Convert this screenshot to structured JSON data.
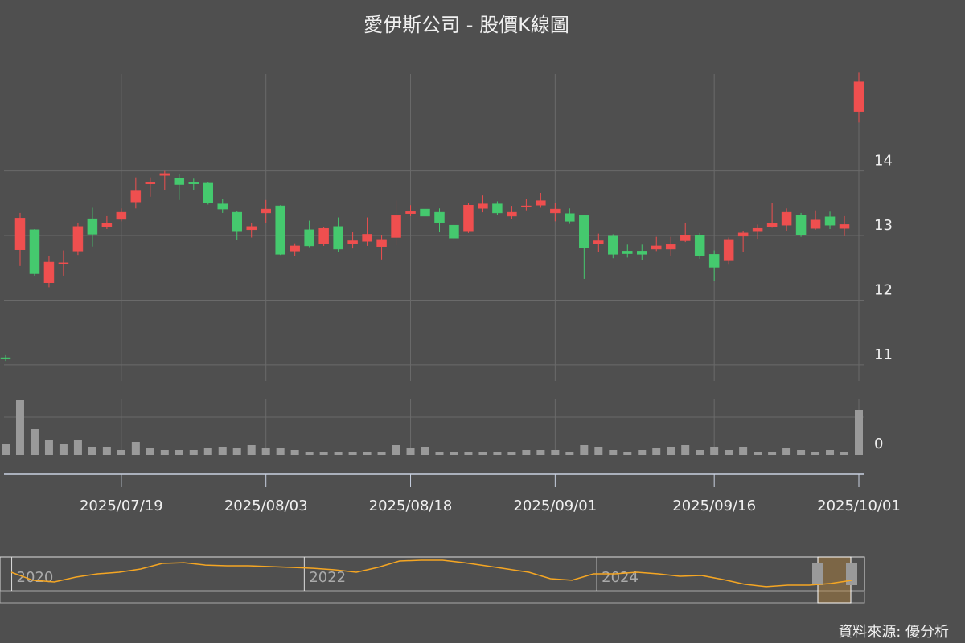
{
  "chart_data": {
    "type": "candlestick",
    "title": "愛伊斯公司 - 股價K線圖",
    "source": "資料來源: 優分析",
    "up_color": "#ef4f4f",
    "down_color": "#45c96e",
    "grid": true,
    "x": [
      "2025/07/09",
      "2025/07/10",
      "2025/07/11",
      "2025/07/14",
      "2025/07/15",
      "2025/07/16",
      "2025/07/17",
      "2025/07/18",
      "2025/07/21",
      "2025/07/22",
      "2025/07/23",
      "2025/07/24",
      "2025/07/25",
      "2025/07/28",
      "2025/07/29",
      "2025/07/30",
      "2025/07/31",
      "2025/08/01",
      "2025/08/04",
      "2025/08/05",
      "2025/08/06",
      "2025/08/07",
      "2025/08/08",
      "2025/08/11",
      "2025/08/12",
      "2025/08/13",
      "2025/08/14",
      "2025/08/15",
      "2025/08/18",
      "2025/08/19",
      "2025/08/20",
      "2025/08/21",
      "2025/08/22",
      "2025/08/25",
      "2025/08/26",
      "2025/08/27",
      "2025/08/28",
      "2025/08/29",
      "2025/09/01",
      "2025/09/02",
      "2025/09/03",
      "2025/09/04",
      "2025/09/05",
      "2025/09/08",
      "2025/09/09",
      "2025/09/10",
      "2025/09/11",
      "2025/09/12",
      "2025/09/15",
      "2025/09/16",
      "2025/09/17",
      "2025/09/18",
      "2025/09/19",
      "2025/09/22",
      "2025/09/23",
      "2025/09/24",
      "2025/09/25",
      "2025/09/26",
      "2025/09/30",
      "2025/10/01"
    ],
    "open": [
      11.11,
      12.78,
      13.09,
      12.27,
      12.57,
      12.76,
      13.26,
      13.14,
      13.25,
      13.52,
      13.8,
      13.93,
      13.89,
      13.82,
      13.81,
      13.49,
      13.36,
      13.09,
      13.35,
      13.46,
      12.76,
      13.09,
      12.87,
      13.14,
      12.87,
      12.91,
      12.83,
      12.97,
      13.34,
      13.41,
      13.36,
      13.16,
      13.06,
      13.42,
      13.49,
      13.3,
      13.44,
      13.47,
      13.35,
      13.34,
      13.31,
      12.87,
      12.99,
      12.76,
      12.76,
      12.79,
      12.79,
      12.92,
      13.01,
      12.71,
      12.61,
      12.99,
      13.06,
      13.14,
      13.16,
      13.32,
      13.11,
      13.29,
      13.11,
      14.92
    ],
    "high": [
      11.15,
      13.35,
      13.1,
      12.68,
      12.77,
      13.2,
      13.43,
      13.3,
      13.42,
      13.9,
      13.9,
      14.0,
      13.95,
      13.88,
      13.83,
      13.57,
      13.38,
      13.2,
      13.55,
      13.47,
      12.88,
      13.23,
      13.13,
      13.28,
      13.05,
      13.28,
      13.0,
      13.54,
      13.47,
      13.55,
      13.42,
      13.18,
      13.5,
      13.62,
      13.53,
      13.46,
      13.56,
      13.66,
      13.5,
      13.42,
      13.32,
      13.03,
      13.02,
      12.86,
      12.86,
      12.98,
      12.98,
      13.2,
      13.04,
      12.77,
      12.97,
      13.07,
      13.17,
      13.51,
      13.42,
      13.35,
      13.39,
      13.37,
      13.3,
      15.52
    ],
    "low": [
      11.06,
      12.53,
      12.38,
      12.2,
      12.38,
      12.7,
      12.83,
      13.1,
      13.22,
      13.42,
      13.6,
      13.7,
      13.55,
      13.7,
      13.48,
      13.35,
      12.93,
      12.97,
      13.2,
      12.7,
      12.68,
      12.82,
      12.84,
      12.75,
      12.8,
      12.84,
      12.63,
      12.85,
      13.3,
      13.25,
      13.05,
      12.93,
      13.04,
      13.36,
      13.32,
      13.26,
      13.39,
      13.43,
      13.22,
      13.18,
      12.33,
      12.75,
      12.65,
      12.66,
      12.62,
      12.76,
      12.69,
      12.9,
      12.64,
      12.3,
      12.55,
      12.75,
      12.95,
      13.12,
      13.07,
      12.98,
      13.09,
      13.1,
      12.99,
      14.75
    ],
    "close": [
      11.09,
      13.27,
      12.41,
      12.59,
      12.58,
      13.14,
      13.02,
      13.19,
      13.36,
      13.69,
      13.82,
      13.96,
      13.79,
      13.8,
      13.51,
      13.41,
      13.06,
      13.14,
      13.41,
      12.71,
      12.84,
      12.84,
      13.11,
      12.79,
      12.92,
      13.02,
      12.94,
      13.31,
      13.37,
      13.3,
      13.2,
      12.96,
      13.47,
      13.49,
      13.35,
      13.36,
      13.46,
      13.54,
      13.41,
      13.22,
      12.81,
      12.92,
      12.71,
      12.72,
      12.71,
      12.84,
      12.86,
      13.01,
      12.69,
      12.51,
      12.94,
      13.04,
      13.11,
      13.19,
      13.36,
      13.01,
      13.24,
      13.16,
      13.17,
      15.38
    ],
    "ylim": [
      10.75,
      15.5
    ],
    "yticks": [
      11,
      12,
      13,
      14
    ],
    "xticks": [
      "2025/07/19",
      "2025/08/03",
      "2025/08/18",
      "2025/09/01",
      "2025/09/16",
      "2025/10/01"
    ],
    "volume": {
      "color": "#9a9a9a",
      "values": [
        14,
        68,
        32,
        18,
        14,
        18,
        10,
        10,
        6,
        16,
        8,
        6,
        6,
        6,
        8,
        10,
        8,
        12,
        8,
        8,
        6,
        4,
        4,
        4,
        4,
        4,
        4,
        12,
        8,
        10,
        4,
        4,
        4,
        4,
        4,
        4,
        6,
        6,
        6,
        4,
        12,
        10,
        6,
        4,
        6,
        8,
        10,
        12,
        6,
        10,
        6,
        10,
        4,
        4,
        8,
        6,
        4,
        6,
        4,
        56
      ],
      "ylim": [
        0,
        70
      ],
      "yticks": [
        0
      ]
    },
    "navigator": {
      "color": "#f5a623",
      "values": [
        14.35,
        13.38,
        13.18,
        13.76,
        14.15,
        14.35,
        14.74,
        15.42,
        15.51,
        15.22,
        15.13,
        15.13,
        15.03,
        14.93,
        14.83,
        14.64,
        14.35,
        14.93,
        15.71,
        15.81,
        15.81,
        15.51,
        15.13,
        14.74,
        14.35,
        13.57,
        13.38,
        14.15,
        14.15,
        14.35,
        14.15,
        13.86,
        13.96,
        13.47,
        12.89,
        12.6,
        12.79,
        12.79,
        12.99,
        13.38
      ],
      "ylim": [
        12.3,
        16.2
      ],
      "xlim": [
        2019.92,
        2025.83
      ],
      "xticks": [
        2020,
        2022,
        2024
      ]
    }
  }
}
